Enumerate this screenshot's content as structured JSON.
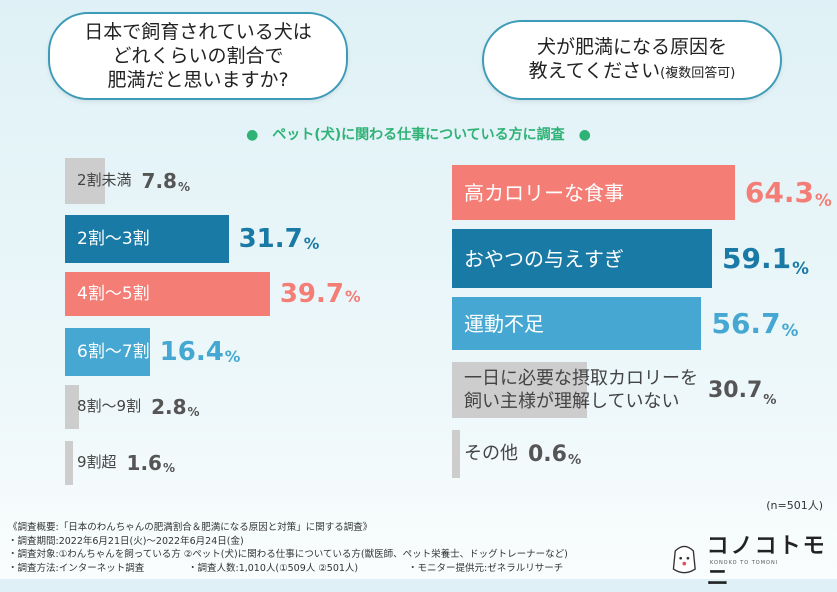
{
  "questions": {
    "q1": [
      "日本で飼育されている犬は",
      "どれくらいの割合で",
      "肥満だと思いますか?"
    ],
    "q2_line1": "犬が肥満になる原因を",
    "q2_line2": "教えてください",
    "q2_note": "(複数回答可)"
  },
  "subtitle": "●　ペット(犬)に関わる仕事についている方に調査　●",
  "colors": {
    "dark": "#1a7aa6",
    "salmon": "#f47d76",
    "light": "#46a8d2",
    "grey": "#cdcdcd"
  },
  "left": [
    {
      "label": "2割未満",
      "value": 7.8,
      "color": "grey"
    },
    {
      "label": "2割〜3割",
      "value": 31.7,
      "color": "dark"
    },
    {
      "label": "4割〜5割",
      "value": 39.7,
      "color": "salmon"
    },
    {
      "label": "6割〜7割",
      "value": 16.4,
      "color": "light"
    },
    {
      "label": "8割〜9割",
      "value": 2.8,
      "color": "grey"
    },
    {
      "label": "9割超",
      "value": 1.6,
      "color": "grey"
    }
  ],
  "right": [
    {
      "label": "高カロリーな食事",
      "value": 64.3,
      "color": "salmon"
    },
    {
      "label": "おやつの与えすぎ",
      "value": 59.1,
      "color": "dark"
    },
    {
      "label": "運動不足",
      "value": 56.7,
      "color": "light"
    },
    {
      "label": "一日に必要な摂取カロリーを\n飼い主様が理解していない",
      "value": 30.7,
      "color": "grey"
    },
    {
      "label": "その他",
      "value": 0.6,
      "color": "grey"
    }
  ],
  "n": "(n=501人)",
  "notes": [
    "《調査概要:「日本のわんちゃんの肥満割合＆肥満になる原因と対策」に関する調査》",
    "・調査期間:2022年6月21日(火)〜2022年6月24日(金)",
    "・調査対象:①わんちゃんを飼っている方 ②ペット(犬)に関わる仕事についている方(獣医師、ペット栄養士、ドッグトレーナーなど)",
    "・調査方法:インターネット調査",
    "・調査人数:1,010人(①509人 ②501人)",
    "・モニター提供元:ゼネラルリサーチ"
  ],
  "logo": {
    "name": "コノコトモニ",
    "sub": "KONOKO TO TOMONI"
  }
}
